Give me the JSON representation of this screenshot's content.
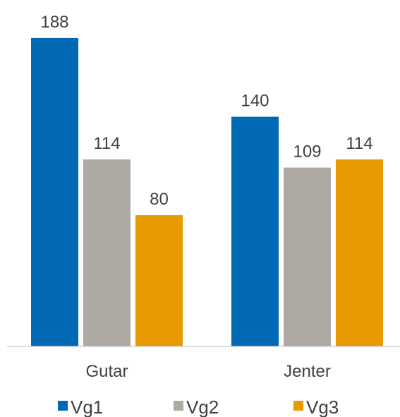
{
  "chart_data": {
    "type": "bar",
    "categories": [
      "Gutar",
      "Jenter"
    ],
    "series": [
      {
        "name": "Vg1",
        "color": "#0068b4",
        "values": [
          188,
          140
        ]
      },
      {
        "name": "Vg2",
        "color": "#aea9a2",
        "values": [
          114,
          109
        ]
      },
      {
        "name": "Vg3",
        "color": "#e89a00",
        "values": [
          80,
          114
        ]
      }
    ],
    "ylim": [
      0,
      200
    ],
    "grid": false,
    "legend": "bottom",
    "data_labels": true,
    "axis_color": "#d0d0d0",
    "text_color": "#404040"
  }
}
